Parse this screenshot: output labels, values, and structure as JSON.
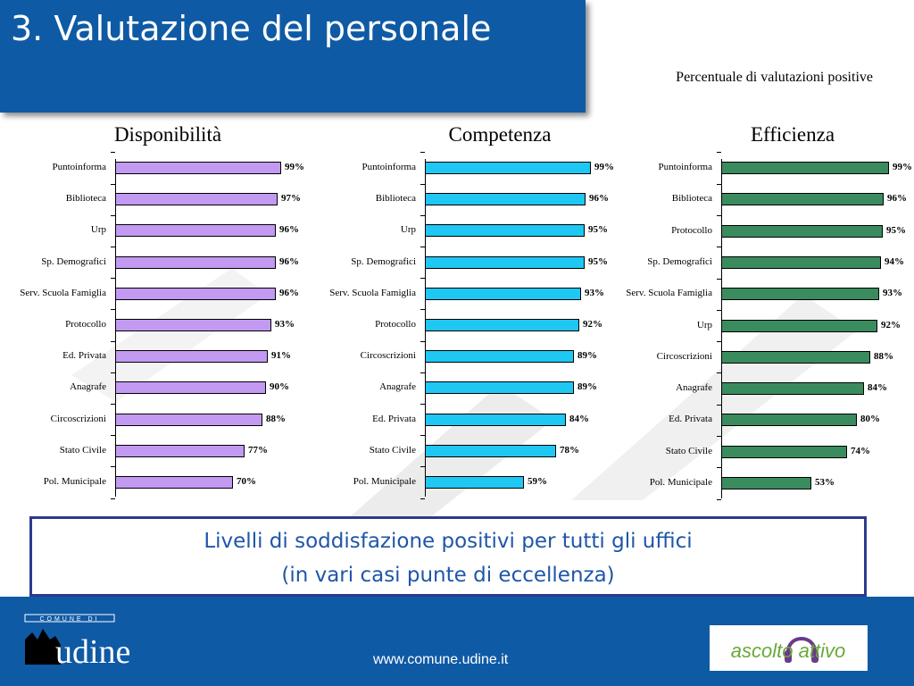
{
  "header": {
    "title": "3. Valutazione del personale"
  },
  "subtitle": "Percentuale di valutazioni positive",
  "chart_data": [
    {
      "type": "bar",
      "orientation": "horizontal",
      "title": "Disponibilità",
      "color": "#c29af2",
      "categories": [
        "Puntoinforma",
        "Biblioteca",
        "Urp",
        "Sp. Demografici",
        "Serv. Scuola Famiglia",
        "Protocollo",
        "Ed. Privata",
        "Anagrafe",
        "Circoscrizioni",
        "Stato Civile",
        "Pol. Municipale"
      ],
      "values": [
        99,
        97,
        96,
        96,
        96,
        93,
        91,
        90,
        88,
        77,
        70
      ],
      "value_labels": [
        "99%",
        "97%",
        "96%",
        "96%",
        "96%",
        "93%",
        "91%",
        "90%",
        "88%",
        "77%",
        "70%"
      ],
      "xlim": [
        0,
        100
      ]
    },
    {
      "type": "bar",
      "orientation": "horizontal",
      "title": "Competenza",
      "color": "#1fc7f3",
      "categories": [
        "Puntoinforma",
        "Biblioteca",
        "Urp",
        "Sp. Demografici",
        "Serv. Scuola Famiglia",
        "Protocollo",
        "Circoscrizioni",
        "Anagrafe",
        "Ed. Privata",
        "Stato Civile",
        "Pol. Municipale"
      ],
      "values": [
        99,
        96,
        95,
        95,
        93,
        92,
        89,
        89,
        84,
        78,
        59
      ],
      "value_labels": [
        "99%",
        "96%",
        "95%",
        "95%",
        "93%",
        "92%",
        "89%",
        "89%",
        "84%",
        "78%",
        "59%"
      ],
      "xlim": [
        0,
        100
      ]
    },
    {
      "type": "bar",
      "orientation": "horizontal",
      "title": "Efficienza",
      "color": "#3a8c5e",
      "categories": [
        "Puntoinforma",
        "Biblioteca",
        "Protocollo",
        "Sp. Demografici",
        "Serv. Scuola Famiglia",
        "Urp",
        "Circoscrizioni",
        "Anagrafe",
        "Ed. Privata",
        "Stato Civile",
        "Pol. Municipale"
      ],
      "values": [
        99,
        96,
        95,
        94,
        93,
        92,
        88,
        84,
        80,
        74,
        53
      ],
      "value_labels": [
        "99%",
        "96%",
        "95%",
        "94%",
        "93%",
        "92%",
        "88%",
        "84%",
        "80%",
        "74%",
        "53%"
      ],
      "xlim": [
        0,
        100
      ]
    }
  ],
  "message": {
    "line1": "Livelli di soddisfazione positivi per tutti gli uffici",
    "line2": "(in vari casi punte di eccellenza)"
  },
  "footer": {
    "url": "www.comune.udine.it",
    "logo_left_text": "COMUNE DI",
    "logo_left_name": "udine",
    "logo_right_text": "ascolto attivo"
  }
}
